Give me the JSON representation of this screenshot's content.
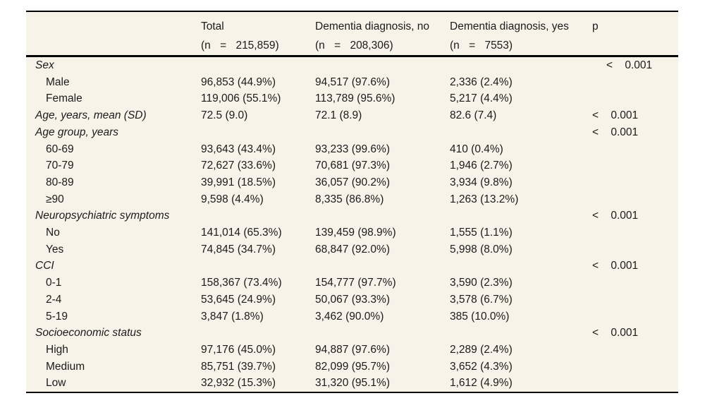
{
  "page": {
    "colors": {
      "table_background": "#f7f3e9",
      "border": "#000000",
      "text": "#1b1b1b"
    }
  },
  "table": {
    "header": [
      {
        "title": "",
        "sub": ""
      },
      {
        "title": "Total",
        "sub": "(n = 215,859)"
      },
      {
        "title": "Dementia diagnosis, no",
        "sub": "(n = 208,306)"
      },
      {
        "title": "Dementia diagnosis, yes",
        "sub": "(n = 7553)"
      },
      {
        "title": "p",
        "sub": ""
      }
    ],
    "rows": [
      {
        "label": "Sex",
        "style": "section",
        "total": "",
        "no": "",
        "yes": "",
        "p": "< 0.001",
        "p_indent": true
      },
      {
        "label": "Male",
        "style": "item",
        "total": "96,853 (44.9%)",
        "no": "94,517 (97.6%)",
        "yes": "2,336 (2.4%)",
        "p": ""
      },
      {
        "label": "Female",
        "style": "item",
        "total": "119,006 (55.1%)",
        "no": "113,789 (95.6%)",
        "yes": "5,217 (4.4%)",
        "p": ""
      },
      {
        "label": "Age, years, mean (SD)",
        "style": "section",
        "total": "72.5 (9.0)",
        "no": "72.1 (8.9)",
        "yes": "82.6 (7.4)",
        "p": "< 0.001"
      },
      {
        "label": "Age group, years",
        "style": "section",
        "total": "",
        "no": "",
        "yes": "",
        "p": "< 0.001"
      },
      {
        "label": "60-69",
        "style": "item",
        "total": "93,643 (43.4%)",
        "no": "93,233 (99.6%)",
        "yes": "410 (0.4%)",
        "p": ""
      },
      {
        "label": "70-79",
        "style": "item",
        "total": "72,627 (33.6%)",
        "no": "70,681 (97.3%)",
        "yes": "1,946 (2.7%)",
        "p": ""
      },
      {
        "label": "80-89",
        "style": "item",
        "total": "39,991 (18.5%)",
        "no": "36,057 (90.2%)",
        "yes": "3,934 (9.8%)",
        "p": ""
      },
      {
        "label": "≥90",
        "style": "item",
        "total": "9,598 (4.4%)",
        "no": "8,335 (86.8%)",
        "yes": "1,263 (13.2%)",
        "p": ""
      },
      {
        "label": "Neuropsychiatric symptoms",
        "style": "section",
        "total": "",
        "no": "",
        "yes": "",
        "p": "< 0.001"
      },
      {
        "label": "No",
        "style": "item",
        "total": "141,014 (65.3%)",
        "no": "139,459 (98.9%)",
        "yes": "1,555 (1.1%)",
        "p": ""
      },
      {
        "label": "Yes",
        "style": "item",
        "total": "74,845 (34.7%)",
        "no": "68,847 (92.0%)",
        "yes": "5,998 (8.0%)",
        "p": ""
      },
      {
        "label": "CCI",
        "style": "section",
        "total": "",
        "no": "",
        "yes": "",
        "p": "< 0.001"
      },
      {
        "label": "0-1",
        "style": "item",
        "total": "158,367 (73.4%)",
        "no": "154,777 (97.7%)",
        "yes": "3,590 (2.3%)",
        "p": ""
      },
      {
        "label": "2-4",
        "style": "item",
        "total": "53,645 (24.9%)",
        "no": "50,067 (93.3%)",
        "yes": "3,578 (6.7%)",
        "p": ""
      },
      {
        "label": "5-19",
        "style": "item",
        "total": "3,847 (1.8%)",
        "no": "3,462 (90.0%)",
        "yes": "385 (10.0%)",
        "p": ""
      },
      {
        "label": "Socioeconomic status",
        "style": "section",
        "total": "",
        "no": "",
        "yes": "",
        "p": "< 0.001"
      },
      {
        "label": "High",
        "style": "item",
        "total": "97,176 (45.0%)",
        "no": "94,887 (97.6%)",
        "yes": "2,289 (2.4%)",
        "p": ""
      },
      {
        "label": "Medium",
        "style": "item",
        "total": "85,751 (39.7%)",
        "no": "82,099 (95.7%)",
        "yes": "3,652 (4.3%)",
        "p": ""
      },
      {
        "label": "Low",
        "style": "item",
        "total": "32,932 (15.3%)",
        "no": "31,320 (95.1%)",
        "yes": "1,612 (4.9%)",
        "p": ""
      }
    ]
  }
}
